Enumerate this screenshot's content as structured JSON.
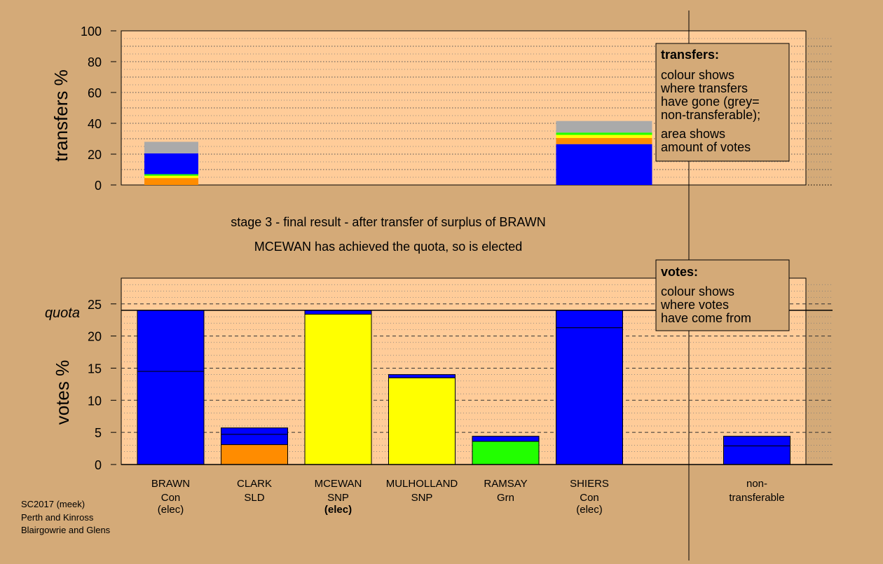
{
  "colors": {
    "background": "#d4aa78",
    "plot_background": "#ffcc99",
    "legend_box": "#d4aa78",
    "Con": "#0000ff",
    "SLD": "#ff8c00",
    "SNP": "#ffff00",
    "Grn": "#22ff00",
    "non_transferable": "#aaaaaa"
  },
  "caption": {
    "line1": "stage 3 - final result - after transfer of surplus of BRAWN",
    "line2": "MCEWAN has achieved the quota, so is elected"
  },
  "footer": [
    "SC2017 (meek)",
    "Perth and Kinross",
    "Blairgowrie and Glens"
  ],
  "quota_label": "quota",
  "legend_transfers": {
    "title": "transfers:",
    "lines": [
      "colour shows",
      "where transfers",
      "have gone (grey=",
      "non-transferable);",
      "area shows",
      "amount of votes"
    ]
  },
  "legend_votes": {
    "title": "votes:",
    "lines": [
      "colour shows",
      "where votes",
      "have come from"
    ]
  },
  "chart_data": [
    {
      "type": "bar",
      "ylabel": "transfers %",
      "ylim": [
        0,
        100
      ],
      "yticks": [
        "0",
        "20",
        "40",
        "60",
        "80",
        "100"
      ],
      "grid": true,
      "bars": [
        {
          "slot": 0,
          "segments": [
            {
              "party": "SLD",
              "value": 4.5
            },
            {
              "party": "SNP",
              "value": 1.5
            },
            {
              "party": "Grn",
              "value": 1.0
            },
            {
              "party": "Con",
              "value": 13.5
            },
            {
              "party": "non_transferable",
              "value": 7.5
            }
          ]
        },
        {
          "slot": 5,
          "segments": [
            {
              "party": "Con",
              "value": 26.5
            },
            {
              "party": "SLD",
              "value": 4.0
            },
            {
              "party": "SNP",
              "value": 2.0
            },
            {
              "party": "Grn",
              "value": 1.5
            },
            {
              "party": "non_transferable",
              "value": 7.5
            }
          ]
        }
      ]
    },
    {
      "type": "bar",
      "ylabel": "votes %",
      "ylim": [
        0,
        29
      ],
      "yticks": [
        "0",
        "5",
        "10",
        "15",
        "20",
        "25"
      ],
      "quota": 24,
      "grid": true,
      "categories": [
        {
          "name": "BRAWN",
          "party": "Con",
          "status": "(elec)",
          "status_bold": false
        },
        {
          "name": "CLARK",
          "party": "SLD",
          "status": "",
          "status_bold": false
        },
        {
          "name": "MCEWAN",
          "party": "SNP",
          "status": "(elec)",
          "status_bold": true
        },
        {
          "name": "MULHOLLAND",
          "party": "SNP",
          "status": "",
          "status_bold": false
        },
        {
          "name": "RAMSAY",
          "party": "Grn",
          "status": "",
          "status_bold": false
        },
        {
          "name": "SHIERS",
          "party": "Con",
          "status": "(elec)",
          "status_bold": false
        },
        {
          "name": "non-",
          "party": "transferable",
          "status": "",
          "status_bold": false
        }
      ],
      "bars": [
        {
          "slot": 0,
          "segments": [
            {
              "party": "Con",
              "value": 14.5
            },
            {
              "party": "Con",
              "value": 9.5
            }
          ]
        },
        {
          "slot": 1,
          "segments": [
            {
              "party": "SLD",
              "value": 3.1
            },
            {
              "party": "Con",
              "value": 1.6
            },
            {
              "party": "Con",
              "value": 1.0
            }
          ]
        },
        {
          "slot": 2,
          "segments": [
            {
              "party": "SNP",
              "value": 23.4
            },
            {
              "party": "Con",
              "value": 0.6
            }
          ]
        },
        {
          "slot": 3,
          "segments": [
            {
              "party": "SNP",
              "value": 13.5
            },
            {
              "party": "Con",
              "value": 0.5
            }
          ]
        },
        {
          "slot": 4,
          "segments": [
            {
              "party": "Grn",
              "value": 3.6
            },
            {
              "party": "Con",
              "value": 0.8
            }
          ]
        },
        {
          "slot": 5,
          "segments": [
            {
              "party": "Con",
              "value": 21.3
            },
            {
              "party": "Con",
              "value": 2.7
            }
          ]
        },
        {
          "slot": 7,
          "segments": [
            {
              "party": "Con",
              "value": 2.9
            },
            {
              "party": "Con",
              "value": 1.5
            }
          ]
        }
      ]
    }
  ]
}
